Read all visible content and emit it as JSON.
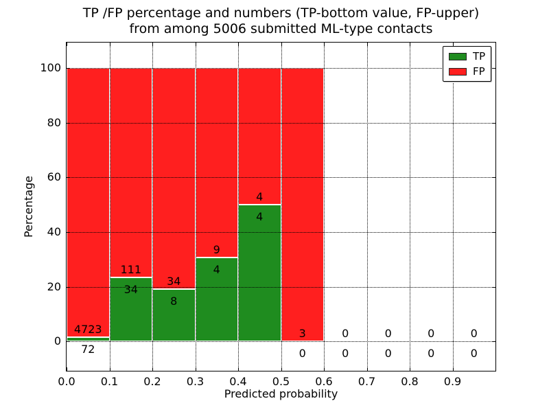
{
  "figure": {
    "title_line1": "TP /FP percentage and numbers (TP-bottom value, FP-upper)",
    "title_line2": "from among 5006 submitted ML-type contacts"
  },
  "axes": {
    "xlabel": "Predicted probability",
    "ylabel": "Percentage",
    "xlim": [
      0.0,
      1.0
    ],
    "ylim": [
      -10.8,
      109.4
    ],
    "x_tick_values": [
      0.0,
      0.1,
      0.2,
      0.3,
      0.4,
      0.5,
      0.6,
      0.7,
      0.8,
      0.9
    ],
    "x_tick_labels": [
      "0.0",
      "0.1",
      "0.2",
      "0.3",
      "0.4",
      "0.5",
      "0.6",
      "0.7",
      "0.8",
      "0.9"
    ],
    "y_tick_values": [
      0,
      20,
      40,
      60,
      80,
      100
    ],
    "y_tick_labels": [
      "0",
      "20",
      "40",
      "60",
      "80",
      "100"
    ]
  },
  "legend": {
    "items": [
      {
        "label": "TP",
        "color": "#1f8c1f"
      },
      {
        "label": "FP",
        "color": "#ff1f1f"
      }
    ]
  },
  "colors": {
    "tp_green": "#1f8c1f",
    "fp_red": "#ff1f1f",
    "grid": "#000000",
    "bar_edge": "#ffffff",
    "text": "#000000"
  },
  "chart_data": {
    "type": "bar",
    "stacked": true,
    "normalization": "each non-empty bin stacks to 100%",
    "title": "TP /FP percentage and numbers (TP-bottom value, FP-upper) from among 5006 submitted ML-type contacts",
    "xlabel": "Predicted probability",
    "ylabel": "Percentage",
    "xlim": [
      0.0,
      1.0
    ],
    "ylim": [
      -10.8,
      109.4
    ],
    "grid": "dotted, both axes, drawn over bars",
    "legend_position": "upper right",
    "total_contacts": 5006,
    "series_names": [
      "TP",
      "FP"
    ],
    "bins": [
      {
        "x0": 0.0,
        "x1": 0.1,
        "tp": 72,
        "fp": 4723,
        "tp_pct": 1.5
      },
      {
        "x0": 0.1,
        "x1": 0.2,
        "tp": 34,
        "fp": 111,
        "tp_pct": 23.45
      },
      {
        "x0": 0.2,
        "x1": 0.3,
        "tp": 8,
        "fp": 34,
        "tp_pct": 19.05
      },
      {
        "x0": 0.3,
        "x1": 0.4,
        "tp": 4,
        "fp": 9,
        "tp_pct": 30.77
      },
      {
        "x0": 0.4,
        "x1": 0.5,
        "tp": 4,
        "fp": 4,
        "tp_pct": 50.0
      },
      {
        "x0": 0.5,
        "x1": 0.6,
        "tp": 0,
        "fp": 3,
        "tp_pct": 0.0
      },
      {
        "x0": 0.6,
        "x1": 0.7,
        "tp": 0,
        "fp": 0,
        "tp_pct": null
      },
      {
        "x0": 0.7,
        "x1": 0.8,
        "tp": 0,
        "fp": 0,
        "tp_pct": null
      },
      {
        "x0": 0.8,
        "x1": 0.9,
        "tp": 0,
        "fp": 0,
        "tp_pct": null
      },
      {
        "x0": 0.9,
        "x1": 1.0,
        "tp": 0,
        "fp": 0,
        "tp_pct": null
      }
    ]
  }
}
